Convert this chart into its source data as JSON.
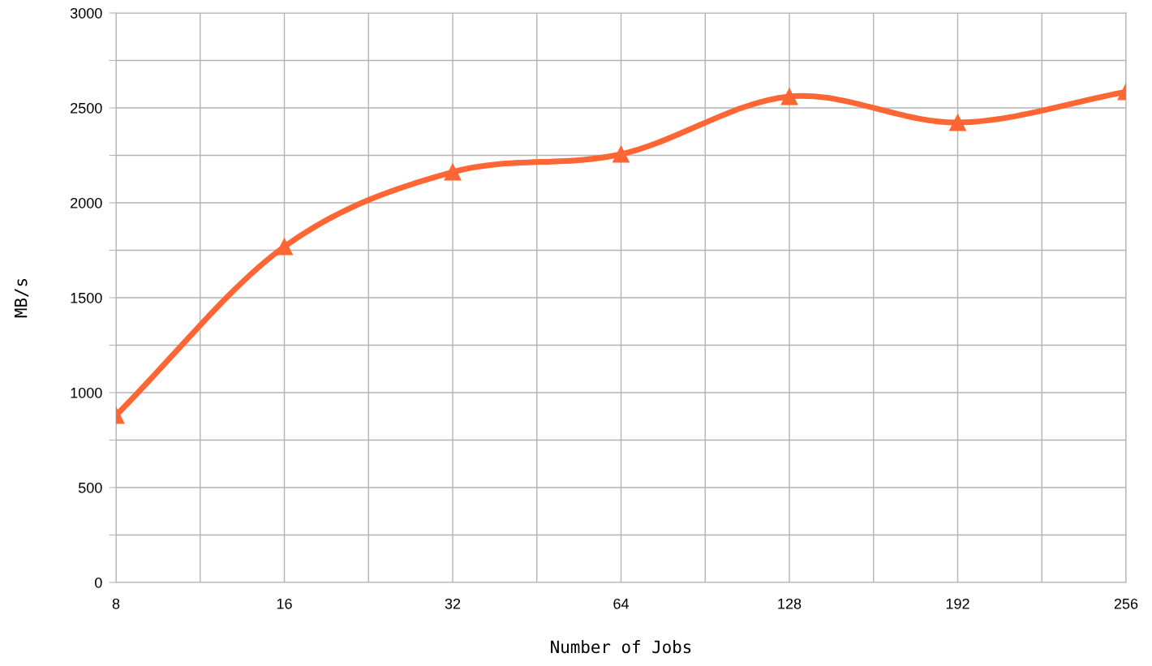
{
  "chart_data": {
    "type": "line",
    "xlabel": "Number of Jobs",
    "ylabel": "MB/s",
    "categories": [
      "8",
      "16",
      "32",
      "64",
      "128",
      "192",
      "256"
    ],
    "series": [
      {
        "color": "#ff6633",
        "values": [
          880,
          1769,
          2162,
          2256,
          2560,
          2423,
          2585
        ]
      }
    ],
    "ylim": [
      0,
      3000
    ],
    "yticks": [
      0,
      {
        "value": 250,
        "label": null
      },
      500,
      {
        "value": 750,
        "label": null
      },
      1000,
      {
        "value": 1250,
        "label": null
      },
      1500,
      {
        "value": 1750,
        "label": null
      },
      2000,
      {
        "value": 2250,
        "label": null
      },
      2500,
      {
        "value": 2750,
        "label": null
      },
      3000
    ],
    "grid": true,
    "marker": "triangle",
    "line_style": "solid"
  }
}
